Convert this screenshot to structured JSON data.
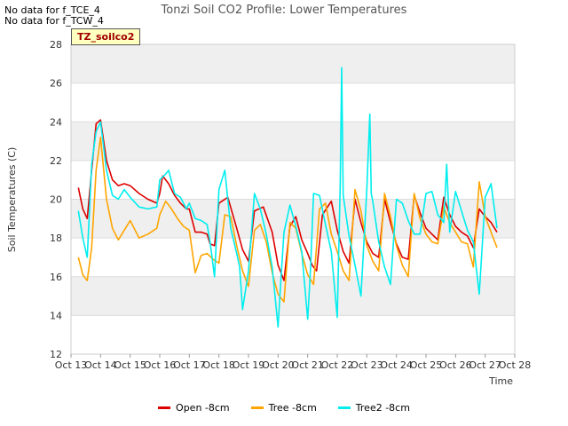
{
  "notes": [
    "No data for f_TCE_4",
    "No data for f_TCW_4"
  ],
  "badge": "TZ_soilco2",
  "chart_data": {
    "type": "line",
    "title": "Tonzi Soil CO2 Profile: Lower Temperatures",
    "xlabel": "Time",
    "ylabel": "Soil Temperatures (C)",
    "xlim": [
      13,
      28
    ],
    "ylim": [
      12,
      28
    ],
    "x_ticks": [
      13,
      14,
      15,
      16,
      17,
      18,
      19,
      20,
      21,
      22,
      23,
      24,
      25,
      26,
      27,
      28
    ],
    "x_tick_labels": [
      "Oct 13",
      "Oct 14",
      "Oct 15",
      "Oct 16",
      "Oct 17",
      "Oct 18",
      "Oct 19",
      "Oct 20",
      "Oct 21",
      "Oct 22",
      "Oct 23",
      "Oct 24",
      "Oct 25",
      "Oct 26",
      "Oct 27",
      "Oct 28"
    ],
    "y_ticks": [
      12,
      14,
      16,
      18,
      20,
      22,
      24,
      26,
      28
    ],
    "y_tick_labels": [
      "12",
      "14",
      "16",
      "18",
      "20",
      "22",
      "24",
      "26",
      "28"
    ],
    "grid": true,
    "legend_position": "bottom",
    "series": [
      {
        "name": "Open -8cm",
        "color": "#dd0000",
        "x": [
          13.25,
          13.4,
          13.55,
          13.7,
          13.85,
          14.0,
          14.2,
          14.4,
          14.6,
          14.8,
          15.0,
          15.3,
          15.6,
          15.9,
          16.0,
          16.1,
          16.3,
          16.5,
          16.7,
          16.9,
          17.0,
          17.2,
          17.4,
          17.6,
          17.7,
          17.85,
          18.0,
          18.3,
          18.6,
          18.8,
          19.0,
          19.2,
          19.5,
          19.8,
          20.0,
          20.2,
          20.4,
          20.6,
          20.8,
          21.0,
          21.15,
          21.3,
          21.5,
          21.8,
          22.0,
          22.2,
          22.4,
          22.6,
          22.8,
          23.0,
          23.2,
          23.4,
          23.6,
          23.8,
          24.0,
          24.2,
          24.4,
          24.6,
          24.8,
          25.0,
          25.2,
          25.4,
          25.6,
          25.8,
          26.0,
          26.2,
          26.4,
          26.6,
          26.8,
          27.0,
          27.2,
          27.4
        ],
        "values": [
          20.6,
          19.5,
          19.0,
          21.5,
          23.9,
          24.1,
          22.0,
          21.0,
          20.7,
          20.8,
          20.7,
          20.3,
          20.0,
          19.8,
          20.3,
          21.2,
          20.8,
          20.2,
          19.8,
          19.5,
          19.5,
          18.3,
          18.3,
          18.2,
          17.7,
          17.6,
          19.8,
          20.1,
          18.5,
          17.4,
          16.8,
          19.4,
          19.6,
          18.3,
          16.6,
          15.8,
          18.6,
          19.1,
          17.9,
          17.2,
          16.6,
          16.3,
          19.2,
          19.9,
          18.4,
          17.3,
          16.7,
          20.0,
          18.8,
          17.8,
          17.2,
          17.0,
          20.0,
          18.8,
          17.7,
          17.0,
          16.9,
          20.2,
          19.3,
          18.5,
          18.2,
          17.9,
          20.1,
          19.2,
          18.6,
          18.3,
          18.1,
          17.5,
          19.5,
          19.1,
          18.8,
          18.3
        ]
      },
      {
        "name": "Tree -8cm",
        "color": "#ffa500",
        "x": [
          13.25,
          13.4,
          13.55,
          13.7,
          13.85,
          14.0,
          14.2,
          14.4,
          14.6,
          14.8,
          15.0,
          15.3,
          15.6,
          15.9,
          16.0,
          16.2,
          16.4,
          16.6,
          16.8,
          17.0,
          17.2,
          17.4,
          17.6,
          17.8,
          18.0,
          18.2,
          18.4,
          18.6,
          18.8,
          19.0,
          19.2,
          19.4,
          19.6,
          19.8,
          20.0,
          20.2,
          20.4,
          20.6,
          20.8,
          21.0,
          21.2,
          21.4,
          21.6,
          21.8,
          22.0,
          22.2,
          22.4,
          22.6,
          22.8,
          23.0,
          23.2,
          23.4,
          23.6,
          23.8,
          24.0,
          24.2,
          24.4,
          24.6,
          24.8,
          25.0,
          25.2,
          25.4,
          25.6,
          25.8,
          26.0,
          26.2,
          26.4,
          26.6,
          26.8,
          27.0,
          27.2,
          27.4
        ],
        "values": [
          17.0,
          16.1,
          15.8,
          17.5,
          21.5,
          23.2,
          20.0,
          18.5,
          17.9,
          18.4,
          18.9,
          18.0,
          18.2,
          18.5,
          19.2,
          19.9,
          19.5,
          19.0,
          18.6,
          18.4,
          16.2,
          17.1,
          17.2,
          16.9,
          16.7,
          19.2,
          19.1,
          17.6,
          16.3,
          15.5,
          18.4,
          18.7,
          17.8,
          16.2,
          15.1,
          14.7,
          18.8,
          18.5,
          17.2,
          16.1,
          15.6,
          19.5,
          19.8,
          18.2,
          17.3,
          16.3,
          15.8,
          20.5,
          19.4,
          17.6,
          16.8,
          16.3,
          20.3,
          19.1,
          17.6,
          16.6,
          16.0,
          20.3,
          19.0,
          18.2,
          17.8,
          17.7,
          19.6,
          18.8,
          18.3,
          17.8,
          17.7,
          16.5,
          20.9,
          19.1,
          18.3,
          17.5
        ]
      },
      {
        "name": "Tree2 -8cm",
        "color": "#00eeee",
        "x": [
          13.25,
          13.4,
          13.55,
          13.7,
          13.85,
          14.0,
          14.2,
          14.4,
          14.6,
          14.8,
          15.0,
          15.3,
          15.6,
          15.9,
          16.0,
          16.2,
          16.3,
          16.5,
          16.7,
          16.9,
          17.0,
          17.2,
          17.4,
          17.6,
          17.7,
          17.85,
          18.0,
          18.1,
          18.2,
          18.4,
          18.6,
          18.7,
          18.8,
          19.0,
          19.2,
          19.4,
          19.6,
          19.8,
          20.0,
          20.1,
          20.2,
          20.4,
          20.6,
          20.8,
          21.0,
          21.1,
          21.2,
          21.4,
          21.6,
          21.8,
          22.0,
          22.1,
          22.15,
          22.2,
          22.4,
          22.6,
          22.8,
          23.0,
          23.1,
          23.15,
          23.2,
          23.4,
          23.6,
          23.8,
          24.0,
          24.2,
          24.4,
          24.6,
          24.8,
          25.0,
          25.2,
          25.4,
          25.6,
          25.7,
          25.8,
          26.0,
          26.2,
          26.4,
          26.6,
          26.8,
          27.0,
          27.2,
          27.4
        ],
        "values": [
          19.4,
          18.0,
          17.0,
          21.8,
          23.5,
          24.0,
          21.5,
          20.2,
          20.0,
          20.5,
          20.1,
          19.6,
          19.5,
          19.6,
          21.0,
          21.3,
          21.5,
          20.3,
          20.1,
          19.5,
          19.8,
          19.0,
          18.9,
          18.7,
          17.8,
          16.0,
          20.5,
          21.0,
          21.5,
          18.5,
          17.2,
          16.5,
          14.3,
          16.3,
          20.3,
          19.5,
          18.2,
          16.5,
          13.4,
          16.0,
          18.3,
          19.7,
          18.6,
          17.3,
          13.8,
          16.5,
          20.3,
          20.2,
          18.7,
          17.3,
          13.9,
          20.6,
          26.8,
          20.2,
          18.1,
          16.6,
          15.0,
          20.5,
          24.4,
          20.3,
          19.9,
          17.8,
          16.5,
          15.6,
          20.0,
          19.8,
          18.9,
          18.2,
          18.2,
          20.3,
          20.4,
          19.2,
          18.8,
          21.8,
          18.3,
          20.4,
          19.4,
          18.4,
          17.8,
          15.1,
          20.1,
          20.8,
          18.5
        ]
      }
    ]
  }
}
